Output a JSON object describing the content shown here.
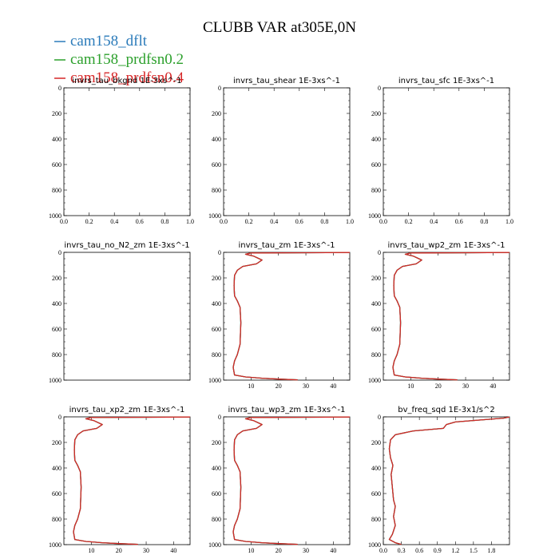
{
  "figure": {
    "title": "CLUBB VAR at305E,0N",
    "legend": [
      {
        "label": "cam158_dflt",
        "color": "#2b7bba"
      },
      {
        "label": "cam158_prdfsn0.2",
        "color": "#2ca02c"
      },
      {
        "label": "cam158_prdfsn0.4",
        "color": "#d62728"
      }
    ]
  },
  "chart_data": [
    {
      "type": "line",
      "title": "invrs_tau_bkgnd  1E-3xs^-1",
      "xlim": [
        0,
        1
      ],
      "ylim": [
        1000,
        0
      ],
      "xticks": [
        "0.0",
        "0.2",
        "0.4",
        "0.6",
        "0.8",
        "1.0"
      ],
      "yticks": [
        "0",
        "200",
        "400",
        "600",
        "800",
        "1000"
      ],
      "series": []
    },
    {
      "type": "line",
      "title": "invrs_tau_shear  1E-3xs^-1",
      "xlim": [
        0,
        1
      ],
      "ylim": [
        1000,
        0
      ],
      "xticks": [
        "0.0",
        "0.2",
        "0.4",
        "0.6",
        "0.8",
        "1.0"
      ],
      "yticks": [
        "0",
        "200",
        "400",
        "600",
        "800",
        "1000"
      ],
      "series": []
    },
    {
      "type": "line",
      "title": "invrs_tau_sfc  1E-3xs^-1",
      "xlim": [
        0,
        1
      ],
      "ylim": [
        1000,
        0
      ],
      "xticks": [
        "0.0",
        "0.2",
        "0.4",
        "0.6",
        "0.8",
        "1.0"
      ],
      "yticks": [
        "0",
        "200",
        "400",
        "600",
        "800",
        "1000"
      ],
      "series": []
    },
    {
      "type": "line",
      "title": "invrs_tau_no_N2_zm  1E-3xs^-1",
      "xlim": [
        0,
        1
      ],
      "ylim": [
        1000,
        0
      ],
      "xticks": [],
      "yticks": [
        "0",
        "200",
        "400",
        "600",
        "800",
        "1000"
      ],
      "series": []
    },
    {
      "type": "line",
      "title": "invrs_tau_zm  1E-3xs^-1",
      "xlim": [
        0,
        46
      ],
      "ylim": [
        1000,
        0
      ],
      "xticks": [
        "10",
        "20",
        "30",
        "40"
      ],
      "yticks": [
        "0",
        "200",
        "400",
        "600",
        "800",
        "1000"
      ],
      "series": [
        {
          "color": "#2b7bba",
          "x": [
            46,
            10,
            8,
            11,
            14,
            12,
            7,
            5,
            4,
            3.8,
            4,
            5,
            6,
            6.3,
            6,
            5,
            4,
            3.5,
            4,
            8,
            14,
            20,
            27
          ],
          "y": [
            1,
            5,
            15,
            30,
            60,
            90,
            110,
            140,
            180,
            260,
            340,
            380,
            430,
            550,
            720,
            800,
            850,
            900,
            960,
            975,
            985,
            992,
            998
          ]
        },
        {
          "color": "#2ca02c",
          "x": [
            46,
            10,
            8,
            11,
            14,
            12,
            7,
            5,
            4,
            3.8,
            4,
            5,
            6,
            6.3,
            6,
            5,
            4,
            3.5,
            4,
            8,
            14,
            20,
            27
          ],
          "y": [
            1,
            5,
            15,
            30,
            60,
            90,
            110,
            140,
            180,
            260,
            340,
            380,
            430,
            550,
            720,
            800,
            850,
            900,
            960,
            975,
            985,
            992,
            998
          ]
        },
        {
          "color": "#d62728",
          "x": [
            46,
            10,
            8,
            11,
            14,
            12,
            7,
            5,
            4,
            3.8,
            4,
            5,
            6,
            6.3,
            6,
            5,
            4,
            3.5,
            4,
            8,
            14,
            20,
            27
          ],
          "y": [
            1,
            5,
            15,
            30,
            60,
            90,
            110,
            140,
            180,
            260,
            340,
            380,
            430,
            550,
            720,
            800,
            850,
            900,
            960,
            975,
            985,
            992,
            998
          ]
        }
      ]
    },
    {
      "type": "line",
      "title": "invrs_tau_wp2_zm  1E-3xs^-1",
      "xlim": [
        0,
        46
      ],
      "ylim": [
        1000,
        0
      ],
      "xticks": [
        "10",
        "20",
        "30",
        "40"
      ],
      "yticks": [
        "0",
        "200",
        "400",
        "600",
        "800",
        "1000"
      ],
      "series": [
        {
          "color": "#2b7bba",
          "x": [
            46,
            10,
            8,
            11,
            14,
            12,
            7,
            5,
            4,
            3.8,
            4,
            5,
            6,
            6.3,
            6,
            5,
            4,
            3.5,
            4,
            8,
            14,
            20,
            27
          ],
          "y": [
            1,
            5,
            15,
            30,
            60,
            90,
            110,
            140,
            180,
            260,
            340,
            380,
            430,
            550,
            720,
            800,
            850,
            900,
            960,
            975,
            985,
            992,
            998
          ]
        },
        {
          "color": "#2ca02c",
          "x": [
            46,
            10,
            8,
            11,
            14,
            12,
            7,
            5,
            4,
            3.8,
            4,
            5,
            6,
            6.3,
            6,
            5,
            4,
            3.5,
            4,
            8,
            14,
            20,
            27
          ],
          "y": [
            1,
            5,
            15,
            30,
            60,
            90,
            110,
            140,
            180,
            260,
            340,
            380,
            430,
            550,
            720,
            800,
            850,
            900,
            960,
            975,
            985,
            992,
            998
          ]
        },
        {
          "color": "#d62728",
          "x": [
            46,
            10,
            8,
            11,
            14,
            12,
            7,
            5,
            4,
            3.8,
            4,
            5,
            6,
            6.3,
            6,
            5,
            4,
            3.5,
            4,
            8,
            14,
            20,
            27
          ],
          "y": [
            1,
            5,
            15,
            30,
            60,
            90,
            110,
            140,
            180,
            260,
            340,
            380,
            430,
            550,
            720,
            800,
            850,
            900,
            960,
            975,
            985,
            992,
            998
          ]
        }
      ]
    },
    {
      "type": "line",
      "title": "invrs_tau_xp2_zm  1E-3xs^-1",
      "xlim": [
        0,
        46
      ],
      "ylim": [
        1000,
        0
      ],
      "xticks": [
        "10",
        "20",
        "30",
        "40"
      ],
      "yticks": [
        "0",
        "200",
        "400",
        "600",
        "800",
        "1000"
      ],
      "series": [
        {
          "color": "#2b7bba",
          "x": [
            46,
            10,
            8,
            11,
            14,
            12,
            7,
            5,
            4,
            3.8,
            4,
            5,
            6,
            6.3,
            6,
            5,
            4,
            3.5,
            4,
            8,
            14,
            20,
            27
          ],
          "y": [
            1,
            5,
            15,
            30,
            60,
            90,
            110,
            140,
            180,
            260,
            340,
            380,
            430,
            550,
            720,
            800,
            850,
            900,
            960,
            975,
            985,
            992,
            998
          ]
        },
        {
          "color": "#2ca02c",
          "x": [
            46,
            10,
            8,
            11,
            14,
            12,
            7,
            5,
            4,
            3.8,
            4,
            5,
            6,
            6.3,
            6,
            5,
            4,
            3.5,
            4,
            8,
            14,
            20,
            27
          ],
          "y": [
            1,
            5,
            15,
            30,
            60,
            90,
            110,
            140,
            180,
            260,
            340,
            380,
            430,
            550,
            720,
            800,
            850,
            900,
            960,
            975,
            985,
            992,
            998
          ]
        },
        {
          "color": "#d62728",
          "x": [
            46,
            10,
            8,
            11,
            14,
            12,
            7,
            5,
            4,
            3.8,
            4,
            5,
            6,
            6.3,
            6,
            5,
            4,
            3.5,
            4,
            8,
            14,
            20,
            27
          ],
          "y": [
            1,
            5,
            15,
            30,
            60,
            90,
            110,
            140,
            180,
            260,
            340,
            380,
            430,
            550,
            720,
            800,
            850,
            900,
            960,
            975,
            985,
            992,
            998
          ]
        }
      ]
    },
    {
      "type": "line",
      "title": "invrs_tau_wp3_zm  1E-3xs^-1",
      "xlim": [
        0,
        46
      ],
      "ylim": [
        1000,
        0
      ],
      "xticks": [
        "10",
        "20",
        "30",
        "40"
      ],
      "yticks": [
        "0",
        "200",
        "400",
        "600",
        "800",
        "1000"
      ],
      "series": [
        {
          "color": "#2b7bba",
          "x": [
            46,
            10,
            8,
            11,
            14,
            12,
            7,
            5,
            4,
            3.8,
            4,
            5,
            6,
            6.3,
            6,
            5,
            4,
            3.5,
            4,
            8,
            14,
            20,
            27
          ],
          "y": [
            1,
            5,
            15,
            30,
            60,
            90,
            110,
            140,
            180,
            260,
            340,
            380,
            430,
            550,
            720,
            800,
            850,
            900,
            960,
            975,
            985,
            992,
            998
          ]
        },
        {
          "color": "#2ca02c",
          "x": [
            46,
            10,
            8,
            11,
            14,
            12,
            7,
            5,
            4,
            3.8,
            4,
            5,
            6,
            6.3,
            6,
            5,
            4,
            3.5,
            4,
            8,
            14,
            20,
            27
          ],
          "y": [
            1,
            5,
            15,
            30,
            60,
            90,
            110,
            140,
            180,
            260,
            340,
            380,
            430,
            550,
            720,
            800,
            850,
            900,
            960,
            975,
            985,
            992,
            998
          ]
        },
        {
          "color": "#d62728",
          "x": [
            46,
            10,
            8,
            11,
            14,
            12,
            7,
            5,
            4,
            3.8,
            4,
            5,
            6,
            6.3,
            6,
            5,
            4,
            3.5,
            4,
            8,
            14,
            20,
            27
          ],
          "y": [
            1,
            5,
            15,
            30,
            60,
            90,
            110,
            140,
            180,
            260,
            340,
            380,
            430,
            550,
            720,
            800,
            850,
            900,
            960,
            975,
            985,
            992,
            998
          ]
        }
      ]
    },
    {
      "type": "line",
      "title": "bv_freq_sqd  1E-3x1/s^2",
      "xlim": [
        0,
        2.1
      ],
      "ylim": [
        1000,
        0
      ],
      "xticks": [
        "0.0",
        "0.3",
        "0.6",
        "0.9",
        "1.2",
        "1.5",
        "1.8"
      ],
      "yticks": [
        "0",
        "200",
        "400",
        "600",
        "800",
        "1000"
      ],
      "series": [
        {
          "color": "#2b7bba",
          "x": [
            2.1,
            2.0,
            1.2,
            1.05,
            1.0,
            0.5,
            0.2,
            0.12,
            0.1,
            0.12,
            0.16,
            0.13,
            0.15,
            0.17,
            0.2,
            0.17,
            0.2,
            0.15,
            0.1,
            0.2,
            0.3
          ],
          "y": [
            1,
            10,
            40,
            60,
            90,
            110,
            140,
            180,
            250,
            320,
            380,
            450,
            550,
            650,
            700,
            780,
            850,
            920,
            960,
            985,
            998
          ]
        },
        {
          "color": "#2ca02c",
          "x": [
            2.1,
            2.0,
            1.2,
            1.05,
            1.0,
            0.5,
            0.2,
            0.12,
            0.1,
            0.12,
            0.16,
            0.13,
            0.15,
            0.17,
            0.2,
            0.17,
            0.2,
            0.15,
            0.1,
            0.2,
            0.3
          ],
          "y": [
            1,
            10,
            40,
            60,
            90,
            110,
            140,
            180,
            250,
            320,
            380,
            450,
            550,
            650,
            700,
            780,
            850,
            920,
            960,
            985,
            998
          ]
        },
        {
          "color": "#d62728",
          "x": [
            2.1,
            2.0,
            1.2,
            1.05,
            1.0,
            0.5,
            0.2,
            0.12,
            0.1,
            0.12,
            0.16,
            0.13,
            0.15,
            0.17,
            0.2,
            0.17,
            0.2,
            0.15,
            0.1,
            0.2,
            0.3
          ],
          "y": [
            1,
            10,
            40,
            60,
            90,
            110,
            140,
            180,
            250,
            320,
            380,
            450,
            550,
            650,
            700,
            780,
            850,
            920,
            960,
            985,
            998
          ]
        }
      ]
    }
  ]
}
